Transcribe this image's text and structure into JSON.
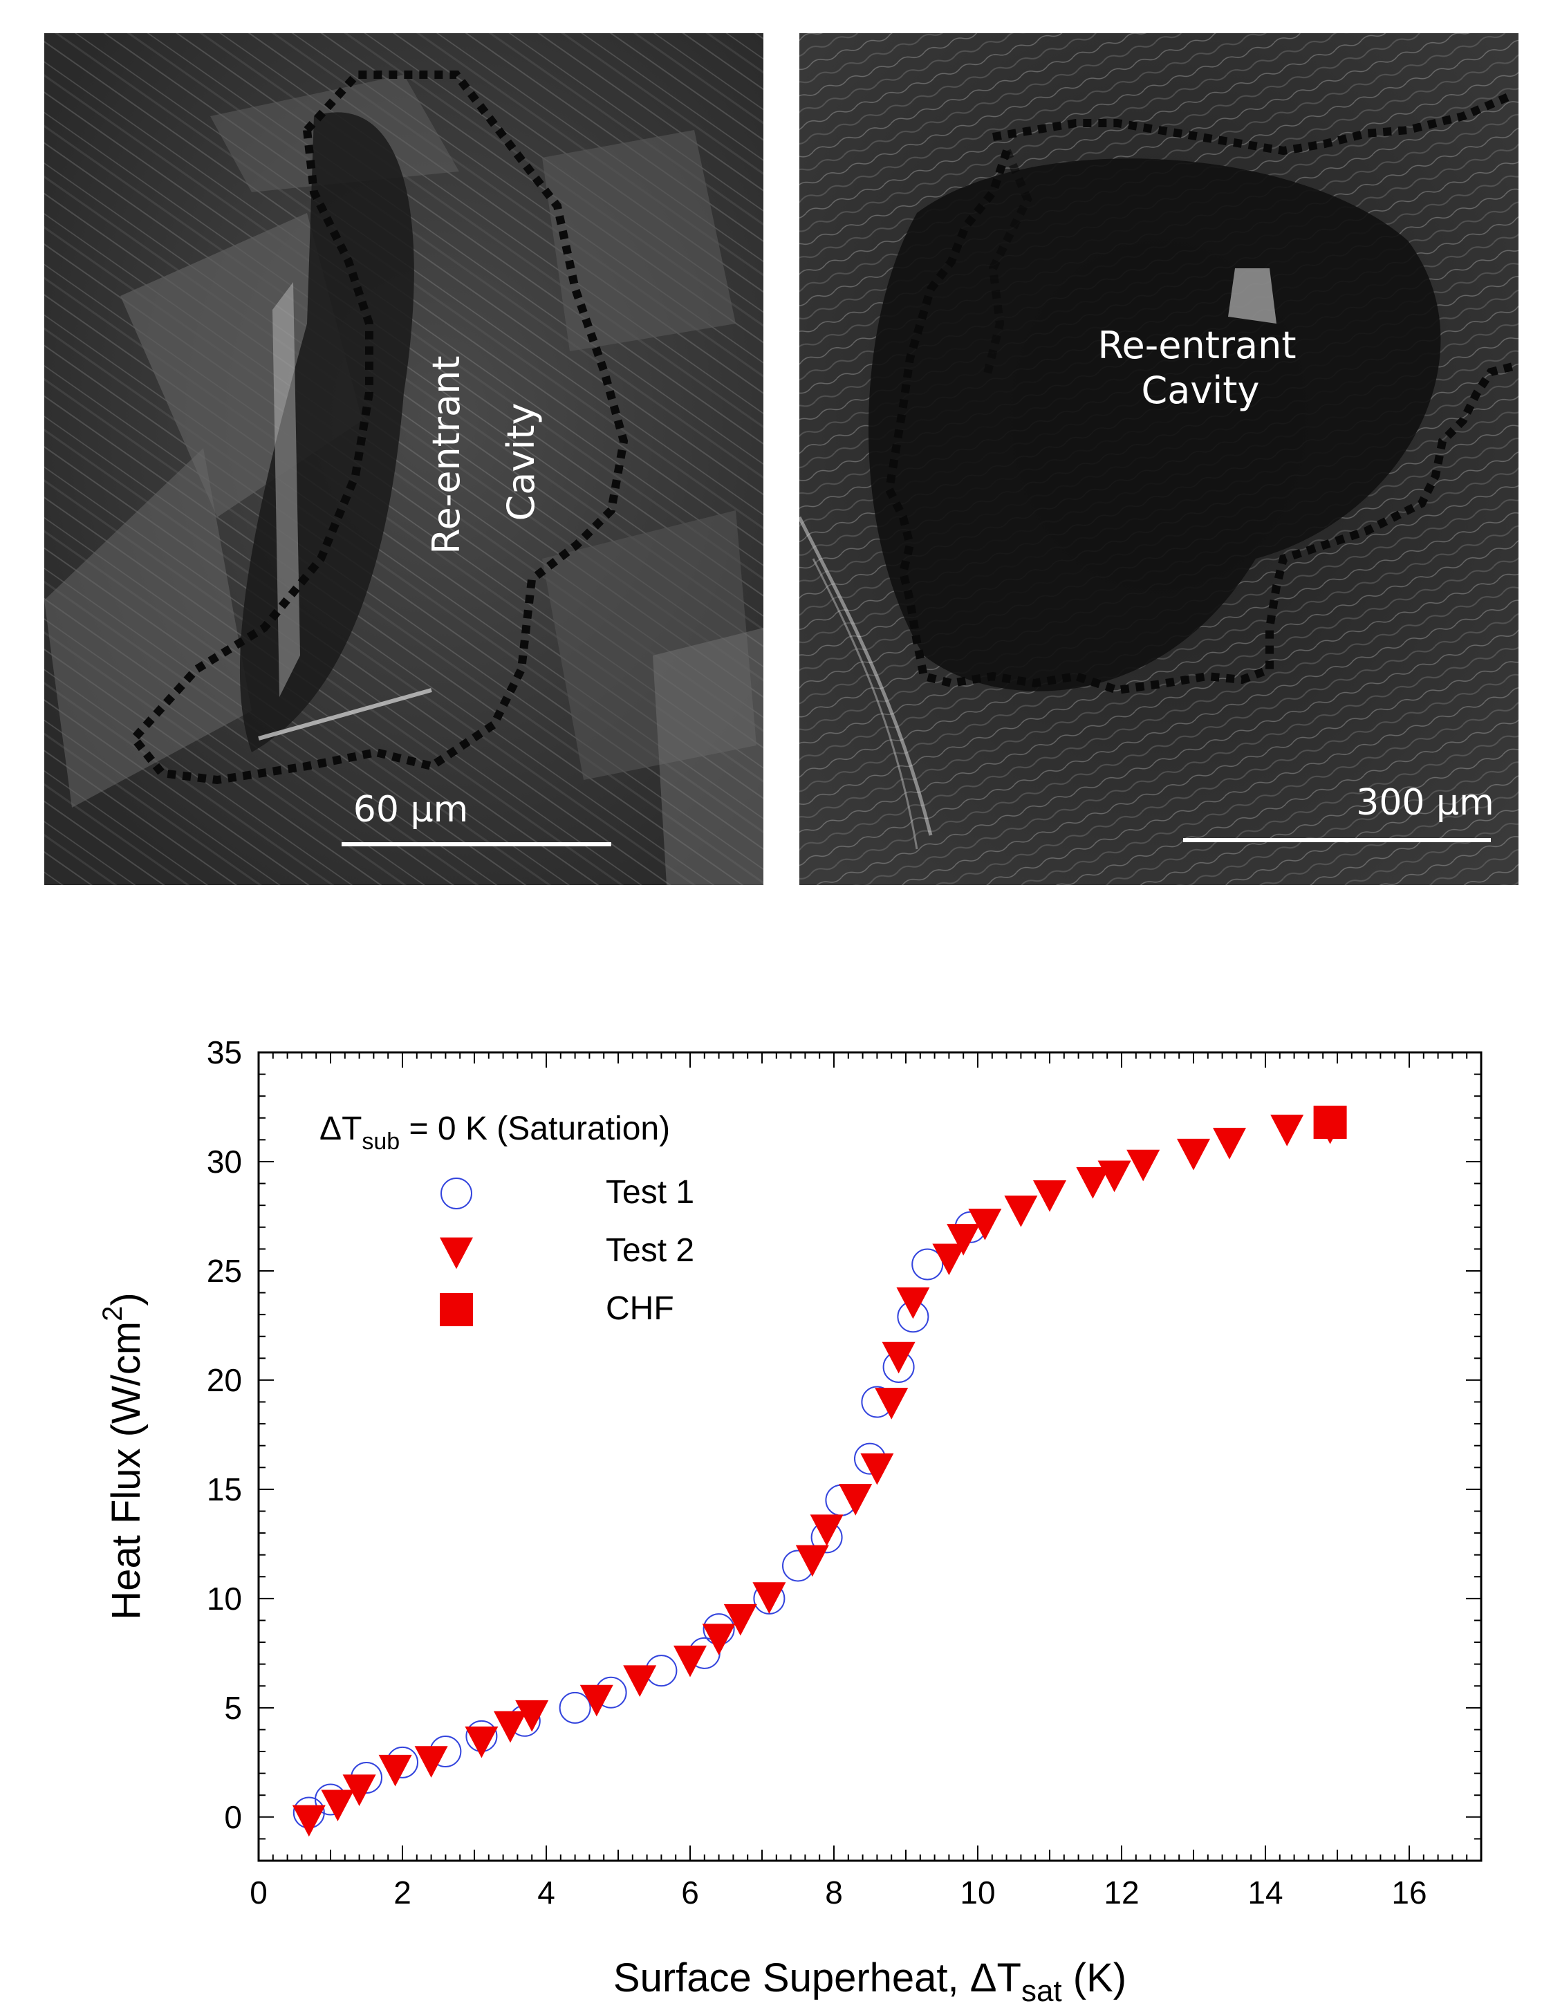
{
  "micrographs": [
    {
      "cavity_label_line1": "Re-entrant",
      "cavity_label_line2": "Cavity",
      "scale_label": "60 μm"
    },
    {
      "cavity_label_line1": "Re-entrant",
      "cavity_label_line2": "Cavity",
      "scale_label": "300 μm"
    }
  ],
  "chart_data": {
    "type": "scatter",
    "xlabel_main": "Surface Superheat, ΔT",
    "xlabel_sub": "sat",
    "xlabel_end": " (K)",
    "ylabel_main": "Heat Flux (W/cm",
    "ylabel_sup": "2",
    "ylabel_end": ")",
    "xlim": [
      0,
      17
    ],
    "ylim": [
      -2,
      35
    ],
    "xticks": [
      "0",
      "2",
      "4",
      "6",
      "8",
      "10",
      "12",
      "14",
      "16"
    ],
    "yticks": [
      "0",
      "5",
      "10",
      "15",
      "20",
      "25",
      "30",
      "35"
    ],
    "condition_main": "ΔT",
    "condition_sub": "sub",
    "condition_end": " = 0 K (Saturation)",
    "colors": {
      "test1": "#3344dd",
      "test2": "#ee0000",
      "chf": "#ee0000"
    },
    "series": [
      {
        "name": "Test 1",
        "marker": "open-circle",
        "points": [
          [
            0.7,
            0.2
          ],
          [
            1.0,
            0.8
          ],
          [
            1.5,
            1.8
          ],
          [
            2.0,
            2.5
          ],
          [
            2.6,
            3.0
          ],
          [
            3.1,
            3.7
          ],
          [
            3.7,
            4.4
          ],
          [
            4.4,
            5.0
          ],
          [
            4.9,
            5.7
          ],
          [
            5.6,
            6.7
          ],
          [
            6.2,
            7.5
          ],
          [
            6.4,
            8.6
          ],
          [
            7.1,
            10.0
          ],
          [
            7.5,
            11.5
          ],
          [
            7.9,
            12.8
          ],
          [
            8.1,
            14.5
          ],
          [
            8.5,
            16.4
          ],
          [
            8.6,
            19.0
          ],
          [
            8.9,
            20.6
          ],
          [
            9.1,
            22.9
          ],
          [
            9.3,
            25.3
          ],
          [
            9.9,
            27.0
          ]
        ]
      },
      {
        "name": "Test 2",
        "marker": "filled-down-triangle",
        "points": [
          [
            0.7,
            -0.1
          ],
          [
            1.1,
            0.6
          ],
          [
            1.4,
            1.3
          ],
          [
            1.9,
            2.2
          ],
          [
            2.4,
            2.6
          ],
          [
            3.1,
            3.5
          ],
          [
            3.5,
            4.2
          ],
          [
            3.8,
            4.7
          ],
          [
            4.7,
            5.4
          ],
          [
            5.3,
            6.3
          ],
          [
            6.0,
            7.2
          ],
          [
            6.4,
            8.2
          ],
          [
            6.7,
            9.1
          ],
          [
            7.1,
            10.1
          ],
          [
            7.7,
            11.8
          ],
          [
            7.9,
            13.2
          ],
          [
            8.3,
            14.6
          ],
          [
            8.6,
            16.0
          ],
          [
            8.8,
            19.0
          ],
          [
            8.9,
            21.1
          ],
          [
            9.1,
            23.6
          ],
          [
            9.6,
            25.6
          ],
          [
            9.8,
            26.5
          ],
          [
            10.1,
            27.2
          ],
          [
            10.6,
            27.8
          ],
          [
            11.0,
            28.5
          ],
          [
            11.6,
            29.1
          ],
          [
            11.9,
            29.4
          ],
          [
            12.3,
            29.9
          ],
          [
            13.0,
            30.4
          ],
          [
            13.5,
            30.9
          ],
          [
            14.3,
            31.5
          ],
          [
            14.9,
            31.6
          ]
        ]
      },
      {
        "name": "CHF",
        "marker": "filled-square",
        "points": [
          [
            14.9,
            31.8
          ]
        ]
      }
    ]
  }
}
